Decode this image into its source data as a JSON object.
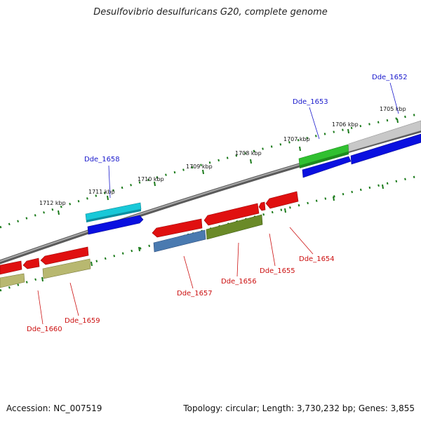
{
  "title": "Desulfovibrio desulfuricans G20, complete genome",
  "footer": {
    "accession": "Accession: NC_007519",
    "summary": "Topology: circular; Length: 3,730,232 bp; Genes: 3,855"
  },
  "scale_labels": [
    "1712 kbp",
    "1711 kbp",
    "1710 kbp",
    "1709 kbp",
    "1708 kbp",
    "1707 kbp",
    "1706 kbp",
    "1705 kbp"
  ],
  "genes": {
    "top": [
      "Dde_1658",
      "Dde_1653",
      "Dde_1652"
    ],
    "bottom": [
      "Dde_1660",
      "Dde_1659",
      "Dde_1657",
      "Dde_1656",
      "Dde_1655",
      "Dde_1654"
    ]
  },
  "colors": {
    "backbone": "#888888",
    "red": "#e01010",
    "blue": "#0a10e0",
    "cyan": "#18c8d8",
    "green": "#30c030",
    "olive": "#6a8a28",
    "khaki": "#b8b870",
    "steel": "#4a7ab0",
    "gray": "#c0c0c0",
    "tick": "#1a7a1a"
  }
}
